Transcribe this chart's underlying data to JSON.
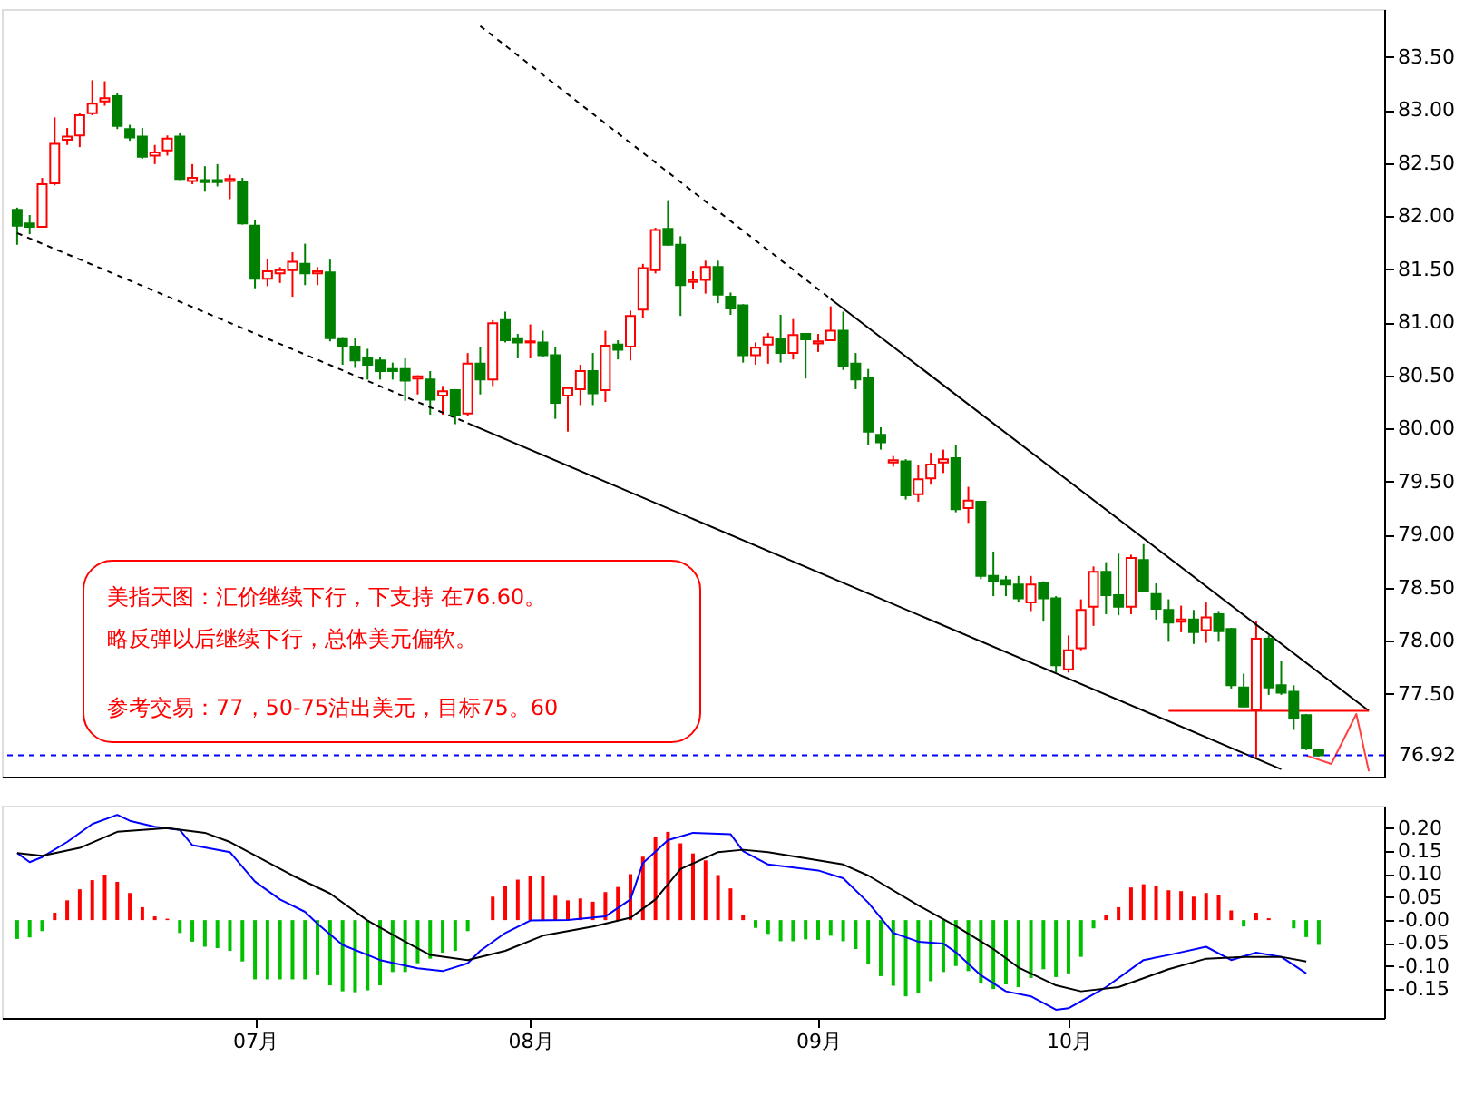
{
  "chart_data": [
    {
      "type": "candlestick",
      "tick_labels": "y",
      "ylim": [
        76.72,
        83.95
      ],
      "yticks": [
        {
          "value": 77.5,
          "label": "77.50"
        },
        {
          "value": 78,
          "label": "78.00"
        },
        {
          "value": 78.5,
          "label": "78.50"
        },
        {
          "value": 79,
          "label": "79.00"
        },
        {
          "value": 79.5,
          "label": "79.50"
        },
        {
          "value": 80,
          "label": "80.00"
        },
        {
          "value": 80.5,
          "label": "80.50"
        },
        {
          "value": 81,
          "label": "81.00"
        },
        {
          "value": 81.5,
          "label": "81.50"
        },
        {
          "value": 82,
          "label": "82.00"
        },
        {
          "value": 82.5,
          "label": "82.50"
        },
        {
          "value": 83,
          "label": "83.00"
        },
        {
          "value": 83.5,
          "label": "83.50"
        }
      ],
      "categories": [
        null,
        null,
        null,
        null,
        null,
        null,
        null,
        null,
        null,
        null,
        null,
        null,
        null,
        null,
        null,
        null,
        null,
        null,
        null,
        null,
        null,
        null,
        null,
        null,
        null,
        null,
        null,
        null,
        null,
        null,
        null,
        null,
        null,
        null,
        null,
        null,
        null,
        null,
        null,
        null,
        null,
        null,
        null,
        null,
        null,
        null,
        null,
        null,
        null,
        null,
        null,
        null,
        null,
        null,
        null,
        null,
        null,
        null,
        null,
        null,
        null,
        null,
        null,
        null,
        null,
        null,
        null,
        null,
        null,
        null,
        null,
        null,
        null,
        null,
        null,
        null,
        null,
        null,
        null,
        null,
        null,
        null,
        null,
        null,
        null,
        null,
        null,
        null,
        null,
        null,
        null,
        null,
        null,
        null,
        null,
        null,
        null,
        null,
        null,
        null,
        null,
        null,
        null,
        null,
        null,
        null,
        null,
        null,
        null
      ],
      "ohlc": [
        [
          82.06,
          82.08,
          81.73,
          81.91
        ],
        [
          81.93,
          82.01,
          81.83,
          81.9
        ],
        [
          81.9,
          82.36,
          81.9,
          82.3
        ],
        [
          82.31,
          82.93,
          82.29,
          82.68
        ],
        [
          82.72,
          82.83,
          82.67,
          82.75
        ],
        [
          82.76,
          82.97,
          82.65,
          82.95
        ],
        [
          82.97,
          83.28,
          82.95,
          83.06
        ],
        [
          83.08,
          83.27,
          83.04,
          83.11
        ],
        [
          83.13,
          83.16,
          82.82,
          82.85
        ],
        [
          82.82,
          82.86,
          82.71,
          82.74
        ],
        [
          82.75,
          82.83,
          82.54,
          82.56
        ],
        [
          82.57,
          82.67,
          82.49,
          82.6
        ],
        [
          82.62,
          82.76,
          82.57,
          82.73
        ],
        [
          82.75,
          82.78,
          82.34,
          82.35
        ],
        [
          82.33,
          82.49,
          82.3,
          82.36
        ],
        [
          82.34,
          82.47,
          82.23,
          82.32
        ],
        [
          82.34,
          82.49,
          82.28,
          82.32
        ],
        [
          82.33,
          82.39,
          82.16,
          82.35
        ],
        [
          82.32,
          82.36,
          81.92,
          81.93
        ],
        [
          81.91,
          81.96,
          81.32,
          81.41
        ],
        [
          81.41,
          81.6,
          81.34,
          81.48
        ],
        [
          81.46,
          81.52,
          81.37,
          81.49
        ],
        [
          81.49,
          81.66,
          81.24,
          81.57
        ],
        [
          81.55,
          81.74,
          81.35,
          81.46
        ],
        [
          81.46,
          81.52,
          81.35,
          81.48
        ],
        [
          81.47,
          81.59,
          80.82,
          80.85
        ],
        [
          80.85,
          80.86,
          80.6,
          80.78
        ],
        [
          80.77,
          80.85,
          80.57,
          80.64
        ],
        [
          80.66,
          80.75,
          80.46,
          80.6
        ],
        [
          80.64,
          80.67,
          80.46,
          80.54
        ],
        [
          80.56,
          80.62,
          80.46,
          80.54
        ],
        [
          80.56,
          80.66,
          80.26,
          80.45
        ],
        [
          80.47,
          80.5,
          80.32,
          80.49
        ],
        [
          80.46,
          80.54,
          80.13,
          80.27
        ],
        [
          80.31,
          80.4,
          80.13,
          80.35
        ],
        [
          80.36,
          80.37,
          80.04,
          80.13
        ],
        [
          80.14,
          80.71,
          80.12,
          80.61
        ],
        [
          80.61,
          80.77,
          80.32,
          80.46
        ],
        [
          80.46,
          81.02,
          80.4,
          80.99
        ],
        [
          81.02,
          81.1,
          80.81,
          80.83
        ],
        [
          80.85,
          80.89,
          80.66,
          80.81
        ],
        [
          80.81,
          80.98,
          80.66,
          80.82
        ],
        [
          80.81,
          80.92,
          80.67,
          80.69
        ],
        [
          80.69,
          80.77,
          80.09,
          80.24
        ],
        [
          80.31,
          80.39,
          79.97,
          80.38
        ],
        [
          80.37,
          80.6,
          80.22,
          80.54
        ],
        [
          80.54,
          80.71,
          80.22,
          80.33
        ],
        [
          80.36,
          80.92,
          80.25,
          80.78
        ],
        [
          80.79,
          80.83,
          80.65,
          80.74
        ],
        [
          80.77,
          81.11,
          80.64,
          81.06
        ],
        [
          81.12,
          81.55,
          81.04,
          81.51
        ],
        [
          81.49,
          81.89,
          81.46,
          81.87
        ],
        [
          81.88,
          82.15,
          81.72,
          81.73
        ],
        [
          81.73,
          81.81,
          81.06,
          81.35
        ],
        [
          81.38,
          81.48,
          81.31,
          81.4
        ],
        [
          81.4,
          81.58,
          81.27,
          81.52
        ],
        [
          81.52,
          81.58,
          81.18,
          81.26
        ],
        [
          81.24,
          81.28,
          81.07,
          81.13
        ],
        [
          81.16,
          81.17,
          80.62,
          80.69
        ],
        [
          80.69,
          80.81,
          80.6,
          80.76
        ],
        [
          80.79,
          80.9,
          80.61,
          80.86
        ],
        [
          80.84,
          81.07,
          80.62,
          80.71
        ],
        [
          80.71,
          81.03,
          80.65,
          80.88
        ],
        [
          80.89,
          80.89,
          80.47,
          80.84
        ],
        [
          80.8,
          80.89,
          80.72,
          80.82
        ],
        [
          80.83,
          81.15,
          80.83,
          80.92
        ],
        [
          80.92,
          81.1,
          80.55,
          80.59
        ],
        [
          80.61,
          80.71,
          80.37,
          80.46
        ],
        [
          80.48,
          80.56,
          79.84,
          79.97
        ],
        [
          79.94,
          80.01,
          79.8,
          79.87
        ],
        [
          79.68,
          79.74,
          79.64,
          79.7
        ],
        [
          79.69,
          79.71,
          79.33,
          79.37
        ],
        [
          79.38,
          79.66,
          79.31,
          79.52
        ],
        [
          79.53,
          79.77,
          79.47,
          79.66
        ],
        [
          79.68,
          79.8,
          79.58,
          79.71
        ],
        [
          79.72,
          79.84,
          79.21,
          79.24
        ],
        [
          79.25,
          79.45,
          79.11,
          79.32
        ],
        [
          79.31,
          79.31,
          78.58,
          78.61
        ],
        [
          78.61,
          78.84,
          78.42,
          78.56
        ],
        [
          78.57,
          78.61,
          78.42,
          78.53
        ],
        [
          78.53,
          78.61,
          78.36,
          78.4
        ],
        [
          78.36,
          78.61,
          78.28,
          78.53
        ],
        [
          78.54,
          78.56,
          78.18,
          78.4
        ],
        [
          78.4,
          78.42,
          77.7,
          77.77
        ],
        [
          77.73,
          78.05,
          77.7,
          77.91
        ],
        [
          77.93,
          78.39,
          77.91,
          78.29
        ],
        [
          78.32,
          78.7,
          78.14,
          78.65
        ],
        [
          78.65,
          78.74,
          78.25,
          78.43
        ],
        [
          78.43,
          78.82,
          78.24,
          78.32
        ],
        [
          78.32,
          78.81,
          78.25,
          78.78
        ],
        [
          78.76,
          78.91,
          78.46,
          78.47
        ],
        [
          78.44,
          78.54,
          78.2,
          78.3
        ],
        [
          78.29,
          78.39,
          77.99,
          78.17
        ],
        [
          78.18,
          78.33,
          78.08,
          78.2
        ],
        [
          78.2,
          78.29,
          77.97,
          78.08
        ],
        [
          78.1,
          78.36,
          77.98,
          78.22
        ],
        [
          78.25,
          78.28,
          77.99,
          78.09
        ],
        [
          78.11,
          78.12,
          77.55,
          77.58
        ],
        [
          77.56,
          77.69,
          77.37,
          77.38
        ],
        [
          77.35,
          78.19,
          76.9,
          78.02
        ],
        [
          78.02,
          78.05,
          77.49,
          77.56
        ],
        [
          77.58,
          77.81,
          77.49,
          77.51
        ],
        [
          77.52,
          77.58,
          77.16,
          77.27
        ],
        [
          77.3,
          77.31,
          76.97,
          76.99
        ],
        [
          76.97,
          76.97,
          76.91,
          76.92
        ],
        null,
        null,
        null,
        null
      ],
      "colors": [
        "#008000",
        "#008000",
        "#ff0000",
        "#ff0000",
        "#ff0000",
        "#ff0000",
        "#ff0000",
        "#ff0000",
        "#008000",
        "#008000",
        "#008000",
        "#ff0000",
        "#ff0000",
        "#008000",
        "#ff0000",
        "#008000",
        "#008000",
        "#ff0000",
        "#008000",
        "#008000",
        "#ff0000",
        "#ff0000",
        "#ff0000",
        "#008000",
        "#ff0000",
        "#008000",
        "#008000",
        "#008000",
        "#008000",
        "#008000",
        "#008000",
        "#008000",
        "#ff0000",
        "#008000",
        "#ff0000",
        "#008000",
        "#ff0000",
        "#008000",
        "#ff0000",
        "#008000",
        "#008000",
        "#ff0000",
        "#008000",
        "#008000",
        "#ff0000",
        "#ff0000",
        "#008000",
        "#ff0000",
        "#008000",
        "#ff0000",
        "#ff0000",
        "#ff0000",
        "#008000",
        "#008000",
        "#ff0000",
        "#ff0000",
        "#008000",
        "#008000",
        "#008000",
        "#ff0000",
        "#ff0000",
        "#008000",
        "#ff0000",
        "#008000",
        "#ff0000",
        "#ff0000",
        "#008000",
        "#008000",
        "#008000",
        "#008000",
        "#ff0000",
        "#008000",
        "#ff0000",
        "#ff0000",
        "#ff0000",
        "#008000",
        "#ff0000",
        "#008000",
        "#008000",
        "#008000",
        "#008000",
        "#ff0000",
        "#008000",
        "#008000",
        "#ff0000",
        "#ff0000",
        "#ff0000",
        "#008000",
        "#008000",
        "#ff0000",
        "#008000",
        "#008000",
        "#008000",
        "#ff0000",
        "#008000",
        "#ff0000",
        "#008000",
        "#008000",
        "#008000",
        "#ff0000",
        "#008000",
        "#008000",
        "#008000",
        "#008000",
        "#008000",
        null,
        null,
        null,
        null
      ],
      "series": [
        {
          "type": "line",
          "color": "#000000",
          "line_style": "dashed",
          "values": [
            null,
            null,
            null,
            null,
            null,
            null,
            null,
            null,
            null,
            null,
            null,
            null,
            null,
            null,
            null,
            null,
            null,
            null,
            null,
            null,
            null,
            null,
            null,
            null,
            null,
            null,
            null,
            null,
            null,
            null,
            null,
            null,
            null,
            null,
            null,
            null,
            null,
            83.79,
            null,
            null,
            null,
            null,
            null,
            null,
            null,
            null,
            null,
            null,
            null,
            null,
            null,
            null,
            null,
            null,
            null,
            null,
            null,
            null,
            null,
            null,
            null,
            null,
            null,
            null,
            null,
            81.22,
            null,
            null,
            null,
            null,
            null,
            null,
            null,
            null,
            null,
            null,
            null,
            null,
            null,
            null,
            null,
            null,
            null,
            null,
            null,
            null,
            null,
            null,
            null,
            null,
            null,
            null,
            null,
            null,
            null,
            null,
            null,
            null,
            null,
            null,
            null,
            null,
            null,
            null,
            null,
            null,
            null,
            null,
            null
          ]
        },
        {
          "type": "line",
          "color": "#000000",
          "line_style": "solid",
          "values": [
            null,
            null,
            null,
            null,
            null,
            null,
            null,
            null,
            null,
            null,
            null,
            null,
            null,
            null,
            null,
            null,
            null,
            null,
            null,
            null,
            null,
            null,
            null,
            null,
            null,
            null,
            null,
            null,
            null,
            null,
            null,
            null,
            null,
            null,
            null,
            null,
            null,
            null,
            null,
            null,
            null,
            null,
            null,
            null,
            null,
            null,
            null,
            null,
            null,
            null,
            null,
            null,
            null,
            null,
            null,
            null,
            null,
            null,
            null,
            null,
            null,
            null,
            null,
            null,
            null,
            81.22,
            null,
            null,
            null,
            null,
            null,
            null,
            null,
            null,
            null,
            null,
            null,
            null,
            null,
            null,
            null,
            null,
            null,
            null,
            null,
            null,
            null,
            null,
            null,
            null,
            null,
            null,
            null,
            null,
            null,
            null,
            null,
            null,
            null,
            null,
            null,
            null,
            null,
            null,
            null,
            null,
            null,
            null,
            77.34
          ]
        },
        {
          "type": "line",
          "color": "#000000",
          "line_style": "dashed",
          "values": [
            81.84,
            null,
            null,
            null,
            null,
            null,
            null,
            null,
            null,
            null,
            null,
            null,
            null,
            null,
            null,
            null,
            null,
            null,
            null,
            null,
            null,
            null,
            null,
            null,
            null,
            null,
            null,
            null,
            null,
            null,
            null,
            null,
            null,
            null,
            null,
            null,
            80.05,
            null,
            null,
            null,
            null,
            null,
            null,
            null,
            null,
            null,
            null,
            null,
            null,
            null,
            null,
            null,
            null,
            null,
            null,
            null,
            null,
            null,
            null,
            null,
            null,
            null,
            null,
            null,
            null,
            null,
            null,
            null,
            null,
            null,
            null,
            null,
            null,
            null,
            null,
            null,
            null,
            null,
            null,
            null,
            null,
            null,
            null,
            null,
            null,
            null,
            null,
            null,
            null,
            null,
            null,
            null,
            null,
            null,
            null,
            null,
            null,
            null,
            null,
            null,
            null,
            null,
            null,
            null,
            null,
            null,
            null,
            null,
            null
          ]
        },
        {
          "type": "line",
          "color": "#000000",
          "line_style": "solid",
          "values": [
            null,
            null,
            null,
            null,
            null,
            null,
            null,
            null,
            null,
            null,
            null,
            null,
            null,
            null,
            null,
            null,
            null,
            null,
            null,
            null,
            null,
            null,
            null,
            null,
            null,
            null,
            null,
            null,
            null,
            null,
            null,
            null,
            null,
            null,
            null,
            null,
            80.05,
            null,
            null,
            null,
            null,
            null,
            null,
            null,
            null,
            null,
            null,
            null,
            null,
            null,
            null,
            null,
            null,
            null,
            null,
            null,
            null,
            null,
            null,
            null,
            null,
            null,
            null,
            null,
            null,
            null,
            null,
            null,
            null,
            null,
            null,
            null,
            null,
            null,
            null,
            null,
            null,
            null,
            null,
            null,
            null,
            null,
            null,
            null,
            null,
            null,
            null,
            null,
            null,
            null,
            null,
            null,
            null,
            null,
            null,
            null,
            null,
            null,
            null,
            null,
            null,
            76.79,
            null,
            null,
            null,
            null,
            null,
            null,
            null
          ]
        },
        {
          "type": "line",
          "color": "#ff0000",
          "line_style": "solid",
          "values": [
            null,
            null,
            null,
            null,
            null,
            null,
            null,
            null,
            null,
            null,
            null,
            null,
            null,
            null,
            null,
            null,
            null,
            null,
            null,
            null,
            null,
            null,
            null,
            null,
            null,
            null,
            null,
            null,
            null,
            null,
            null,
            null,
            null,
            null,
            null,
            null,
            null,
            null,
            null,
            null,
            null,
            null,
            null,
            null,
            null,
            null,
            null,
            null,
            null,
            null,
            null,
            null,
            null,
            null,
            null,
            null,
            null,
            null,
            null,
            null,
            null,
            null,
            null,
            null,
            null,
            null,
            null,
            null,
            null,
            null,
            null,
            null,
            null,
            null,
            null,
            null,
            null,
            null,
            null,
            null,
            null,
            null,
            null,
            null,
            null,
            null,
            null,
            null,
            null,
            null,
            null,
            null,
            77.34,
            null,
            null,
            null,
            null,
            null,
            null,
            null,
            null,
            null,
            null,
            null,
            null,
            null,
            null,
            null,
            77.34
          ]
        },
        {
          "type": "line",
          "color": "#ff4040",
          "line_style": "solid",
          "values": [
            null,
            null,
            null,
            null,
            null,
            null,
            null,
            null,
            null,
            null,
            null,
            null,
            null,
            null,
            null,
            null,
            null,
            null,
            null,
            null,
            null,
            null,
            null,
            null,
            null,
            null,
            null,
            null,
            null,
            null,
            null,
            null,
            null,
            null,
            null,
            null,
            null,
            null,
            null,
            null,
            null,
            null,
            null,
            null,
            null,
            null,
            null,
            null,
            null,
            null,
            null,
            null,
            null,
            null,
            null,
            null,
            null,
            null,
            null,
            null,
            null,
            null,
            null,
            null,
            null,
            null,
            null,
            null,
            null,
            null,
            null,
            null,
            null,
            null,
            null,
            null,
            null,
            null,
            null,
            null,
            null,
            null,
            null,
            null,
            null,
            null,
            null,
            null,
            null,
            null,
            null,
            null,
            null,
            null,
            null,
            null,
            null,
            null,
            null,
            null,
            null,
            null,
            null,
            76.92,
            null,
            76.84,
            null,
            77.31,
            76.77
          ]
        }
      ],
      "ref_lines": [
        {
          "axis": "y",
          "value": 76.92,
          "label": "76.92",
          "color": "#0000ff",
          "line_style": "dashed"
        }
      ],
      "annotations": [
        "美指天图：汇价继续下行，下支持 在76.60。",
        "略反弹以后继续下行，总体美元偏软。",
        "参考交易：77，50-75沽出美元，目标75。60"
      ]
    },
    {
      "type": "bar",
      "ylim": [
        -0.213,
        0.249
      ],
      "categories": [
        null,
        null,
        null,
        null,
        null,
        null,
        null,
        null,
        null,
        null,
        null,
        null,
        null,
        null,
        null,
        null,
        null,
        null,
        null,
        "07月",
        null,
        null,
        null,
        null,
        null,
        null,
        null,
        null,
        null,
        null,
        null,
        null,
        null,
        null,
        null,
        null,
        null,
        null,
        null,
        null,
        null,
        "08月",
        null,
        null,
        null,
        null,
        null,
        null,
        null,
        null,
        null,
        null,
        null,
        null,
        null,
        null,
        null,
        null,
        null,
        null,
        null,
        null,
        null,
        null,
        "09月",
        null,
        null,
        null,
        null,
        null,
        null,
        null,
        null,
        null,
        null,
        null,
        null,
        null,
        null,
        null,
        null,
        null,
        null,
        null,
        "10月",
        null,
        null,
        null,
        null,
        null,
        null,
        null,
        null,
        null,
        null,
        null,
        null,
        null,
        null,
        null,
        null,
        null,
        null,
        null,
        null,
        null,
        null,
        null,
        null
      ],
      "yticks": [
        {
          "value": -0.15,
          "label": "-0.15"
        },
        {
          "value": -0.1,
          "label": "-0.10"
        },
        {
          "value": -0.05,
          "label": "-0.05"
        },
        {
          "value": 0,
          "label": "-0.00"
        },
        {
          "value": 0.05,
          "label": "0.05"
        },
        {
          "value": 0.1,
          "label": "0.10"
        },
        {
          "value": 0.15,
          "label": "0.15"
        },
        {
          "value": 0.2,
          "label": "0.20"
        }
      ],
      "series": [
        {
          "type": "bar",
          "values": [
            -0.041,
            -0.038,
            -0.024,
            0.016,
            0.043,
            0.067,
            0.087,
            0.099,
            0.083,
            0.059,
            0.028,
            0.008,
            0.003,
            -0.028,
            -0.047,
            -0.058,
            -0.061,
            -0.067,
            -0.09,
            -0.129,
            -0.129,
            -0.129,
            -0.129,
            -0.129,
            -0.12,
            -0.142,
            -0.155,
            -0.157,
            -0.153,
            -0.142,
            -0.113,
            -0.113,
            -0.094,
            -0.084,
            -0.071,
            -0.067,
            -0.024,
            0,
            0.051,
            0.074,
            0.088,
            0.096,
            0.095,
            0.053,
            0.043,
            0.047,
            0.04,
            0.061,
            0.072,
            0.1,
            0.138,
            0.18,
            0.192,
            0.167,
            0.145,
            0.13,
            0.098,
            0.069,
            0.012,
            -0.017,
            -0.03,
            -0.046,
            -0.046,
            -0.042,
            -0.043,
            -0.034,
            -0.046,
            -0.063,
            -0.096,
            -0.122,
            -0.143,
            -0.166,
            -0.159,
            -0.133,
            -0.113,
            -0.1,
            -0.111,
            -0.136,
            -0.15,
            -0.14,
            -0.146,
            -0.126,
            -0.107,
            -0.124,
            -0.116,
            -0.08,
            -0.018,
            0.012,
            0.028,
            0.071,
            0.078,
            0.075,
            0.065,
            0.063,
            0.051,
            0.059,
            0.055,
            0.021,
            -0.014,
            0.016,
            0.004,
            0,
            -0.018,
            -0.037,
            -0.054,
            null,
            null,
            null,
            null
          ],
          "colors": [
            "#00c000",
            "#00c000",
            "#00c000",
            "#ff0000",
            "#ff0000",
            "#ff0000",
            "#ff0000",
            "#ff0000",
            "#ff0000",
            "#ff0000",
            "#ff0000",
            "#ff0000",
            "#ff0000",
            "#00c000",
            "#00c000",
            "#00c000",
            "#00c000",
            "#00c000",
            "#00c000",
            "#00c000",
            "#00c000",
            "#00c000",
            "#00c000",
            "#00c000",
            "#00c000",
            "#00c000",
            "#00c000",
            "#00c000",
            "#00c000",
            "#00c000",
            "#00c000",
            "#00c000",
            "#00c000",
            "#00c000",
            "#00c000",
            "#00c000",
            "#00c000",
            "#00c000",
            "#ff0000",
            "#ff0000",
            "#ff0000",
            "#ff0000",
            "#ff0000",
            "#ff0000",
            "#ff0000",
            "#ff0000",
            "#ff0000",
            "#ff0000",
            "#ff0000",
            "#ff0000",
            "#ff0000",
            "#ff0000",
            "#ff0000",
            "#ff0000",
            "#ff0000",
            "#ff0000",
            "#ff0000",
            "#ff0000",
            "#ff0000",
            "#00c000",
            "#00c000",
            "#00c000",
            "#00c000",
            "#00c000",
            "#00c000",
            "#00c000",
            "#00c000",
            "#00c000",
            "#00c000",
            "#00c000",
            "#00c000",
            "#00c000",
            "#00c000",
            "#00c000",
            "#00c000",
            "#00c000",
            "#00c000",
            "#00c000",
            "#00c000",
            "#00c000",
            "#00c000",
            "#00c000",
            "#00c000",
            "#00c000",
            "#00c000",
            "#00c000",
            "#00c000",
            "#ff0000",
            "#ff0000",
            "#ff0000",
            "#ff0000",
            "#ff0000",
            "#ff0000",
            "#ff0000",
            "#ff0000",
            "#ff0000",
            "#ff0000",
            "#ff0000",
            "#00c000",
            "#ff0000",
            "#ff0000",
            "#ff0000",
            "#00c000",
            "#00c000",
            "#00c000",
            null,
            null,
            null,
            null
          ]
        },
        {
          "type": "line",
          "color": "#0000ff",
          "values": [
            0.146,
            0.126,
            0.137,
            null,
            0.17,
            null,
            0.209,
            null,
            0.229,
            0.216,
            null,
            0.203,
            null,
            0.196,
            0.163,
            null,
            null,
            0.148,
            null,
            0.084,
            null,
            0.045,
            null,
            0.018,
            -0.008,
            null,
            -0.054,
            null,
            null,
            -0.087,
            null,
            null,
            -0.105,
            null,
            -0.111,
            null,
            -0.094,
            -0.067,
            null,
            -0.028,
            null,
            -0.001,
            null,
            null,
            0,
            null,
            null,
            0.008,
            null,
            0.045,
            0.124,
            null,
            0.174,
            null,
            0.19,
            null,
            null,
            0.187,
            0.15,
            null,
            0.121,
            null,
            null,
            null,
            0.108,
            null,
            0.091,
            null,
            0.038,
            null,
            -0.028,
            null,
            -0.047,
            null,
            -0.051,
            -0.07,
            null,
            -0.12,
            null,
            -0.155,
            null,
            -0.166,
            null,
            -0.195,
            -0.192,
            null,
            null,
            -0.146,
            null,
            null,
            -0.087,
            null,
            -0.076,
            null,
            null,
            -0.058,
            null,
            -0.087,
            null,
            -0.071,
            null,
            -0.08,
            null,
            -0.116,
            null,
            null,
            null,
            null,
            null
          ]
        },
        {
          "type": "line",
          "color": "#000000",
          "values": [
            0.146,
            null,
            0.14,
            null,
            null,
            0.157,
            null,
            null,
            0.192,
            null,
            null,
            null,
            0.2,
            null,
            null,
            0.19,
            null,
            0.17,
            null,
            null,
            null,
            null,
            0.097,
            null,
            null,
            0.058,
            null,
            null,
            -0.001,
            null,
            null,
            -0.047,
            null,
            -0.076,
            null,
            null,
            -0.087,
            null,
            null,
            -0.067,
            null,
            null,
            -0.034,
            null,
            null,
            null,
            -0.014,
            null,
            null,
            0.005,
            null,
            0.045,
            null,
            0.111,
            null,
            null,
            0.148,
            null,
            0.153,
            null,
            0.148,
            null,
            null,
            null,
            null,
            null,
            0.121,
            null,
            0.097,
            null,
            null,
            null,
            0.032,
            null,
            null,
            -0.013,
            null,
            null,
            -0.063,
            null,
            -0.103,
            null,
            null,
            -0.142,
            null,
            -0.155,
            null,
            null,
            -0.146,
            null,
            null,
            null,
            -0.107,
            null,
            null,
            -0.084,
            null,
            null,
            -0.08,
            null,
            null,
            -0.08,
            null,
            -0.09,
            null,
            null,
            null,
            null,
            null
          ]
        }
      ]
    }
  ]
}
